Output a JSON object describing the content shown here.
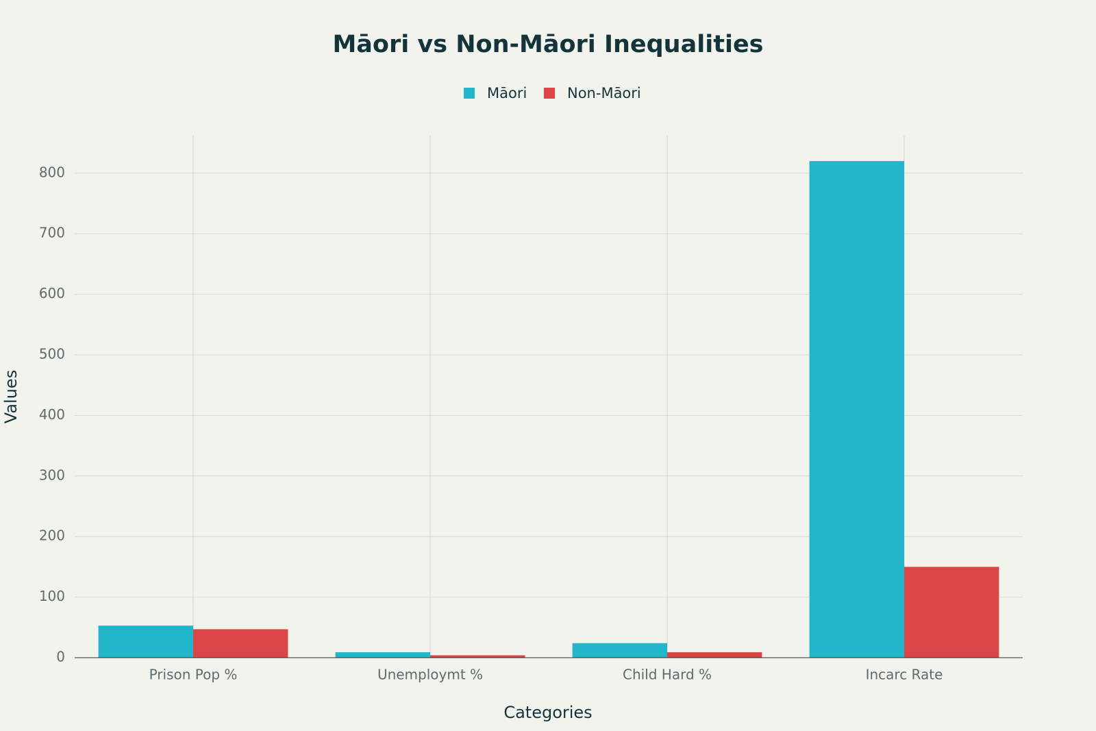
{
  "chart_data": {
    "type": "bar",
    "title": "Māori vs Non-Māori Inequalities",
    "x_label": "Categories",
    "y_label": "Values",
    "categories": [
      "Prison Pop %",
      "Unemploymt %",
      "Child Hard %",
      "Incarc Rate"
    ],
    "series": [
      {
        "name": "Māori",
        "color": "#21b6c9",
        "values": [
          53,
          9,
          24,
          820
        ]
      },
      {
        "name": "Non-Māori",
        "color": "#db4545",
        "values": [
          47,
          4,
          9,
          150
        ]
      }
    ],
    "ylim": [
      0,
      862
    ],
    "yticks": [
      0,
      100,
      200,
      300,
      400,
      500,
      600,
      700,
      800
    ],
    "grid": true
  }
}
